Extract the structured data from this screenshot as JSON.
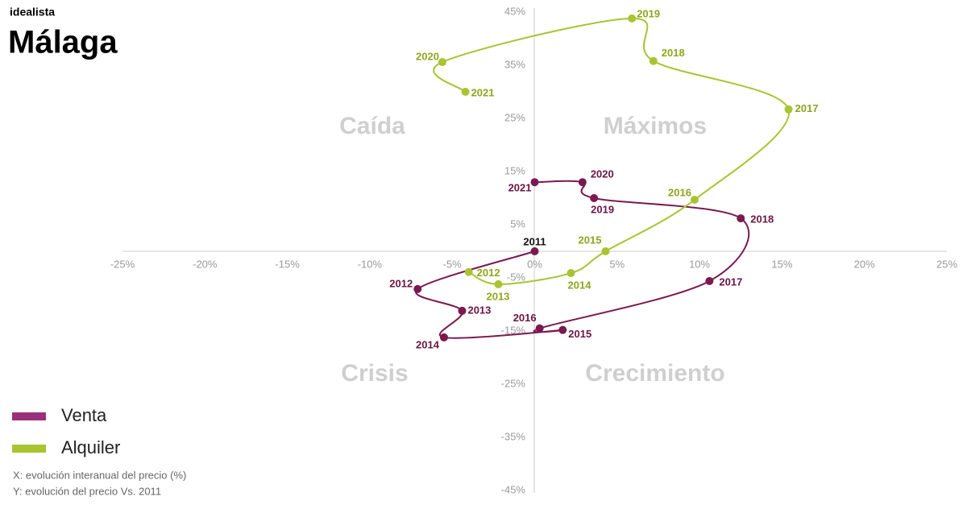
{
  "brand": "idealista",
  "chart_data": {
    "type": "connected-scatter",
    "title": "Málaga",
    "quadrant_labels": [
      "Caída",
      "Máximos",
      "Crisis",
      "Crecimiento"
    ],
    "notes": [
      "X: evolución interanual del precio (%)",
      "Y: evolución del precio Vs. 2011"
    ],
    "xlim": [
      -25,
      25
    ],
    "xticks": [
      {
        "value": -25,
        "label": "-25%"
      },
      {
        "value": -20,
        "label": "-20%"
      },
      {
        "value": -15,
        "label": "-15%"
      },
      {
        "value": -10,
        "label": "-10%"
      },
      {
        "value": -5,
        "label": "-5%"
      },
      {
        "value": 0,
        "label": "0%"
      },
      {
        "value": 5,
        "label": "5%"
      },
      {
        "value": 10,
        "label": "10%"
      },
      {
        "value": 15,
        "label": "15%"
      },
      {
        "value": 20,
        "label": "20%"
      },
      {
        "value": 25,
        "label": "25%"
      }
    ],
    "ylim": [
      -45,
      45
    ],
    "yticks": [
      {
        "value": 45,
        "label": "45%"
      },
      {
        "value": 35,
        "label": "35%"
      },
      {
        "value": 25,
        "label": "25%"
      },
      {
        "value": 15,
        "label": "15%"
      },
      {
        "value": 5,
        "label": "5%"
      },
      {
        "value": -5,
        "label": "-5%"
      },
      {
        "value": -15,
        "label": "-15%"
      },
      {
        "value": -25,
        "label": "-25%"
      },
      {
        "value": -35,
        "label": "-35%"
      },
      {
        "value": -45,
        "label": "-45%"
      }
    ],
    "series": [
      {
        "name": "Venta",
        "color": "#7a1a4e",
        "legend_color": "#9b2f7a",
        "point_labels": [
          "2011",
          "2012",
          "2013",
          "2014",
          "2015",
          "2016",
          "2017",
          "2018",
          "2019",
          "2020",
          "2021"
        ],
        "x": [
          0,
          -7.1,
          -4.4,
          -5.5,
          1.7,
          0.3,
          10.6,
          12.5,
          3.6,
          2.9,
          0
        ],
        "values": [
          0,
          -7.1,
          -11.2,
          -16.2,
          -14.8,
          -14.5,
          -5.6,
          6.2,
          10.0,
          13.0,
          13.0
        ]
      },
      {
        "name": "Alquiler",
        "color": "#a8c431",
        "legend_color": "#a8c431",
        "point_labels": [
          "2012",
          "2013",
          "2014",
          "2015",
          "2016",
          "2017",
          "2018",
          "2019",
          "2020",
          "2021"
        ],
        "x": [
          -4.0,
          -2.2,
          2.2,
          4.3,
          9.7,
          15.4,
          7.2,
          5.9,
          -5.6,
          -4.2
        ],
        "values": [
          -3.9,
          -6.2,
          -4.1,
          0,
          9.7,
          26.7,
          35.8,
          43.8,
          35.6,
          30.0
        ]
      }
    ]
  }
}
